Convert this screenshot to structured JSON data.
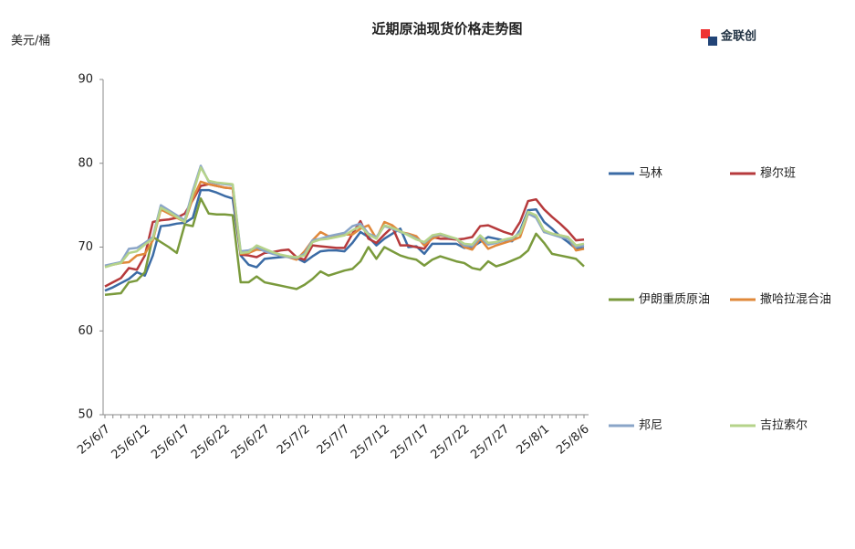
{
  "chart_data": {
    "type": "line",
    "title": "近期原油现货价格走势图",
    "y_label": "美元/桶",
    "logo": "金联创",
    "categories": [
      "25/6/7",
      null,
      null,
      null,
      null,
      "25/6/12",
      null,
      null,
      null,
      null,
      "25/6/17",
      null,
      null,
      null,
      null,
      "25/6/22",
      null,
      null,
      null,
      null,
      "25/6/27",
      null,
      null,
      null,
      null,
      "25/7/2",
      null,
      null,
      null,
      null,
      "25/7/7",
      null,
      null,
      null,
      null,
      "25/7/12",
      null,
      null,
      null,
      null,
      "25/7/17",
      null,
      null,
      null,
      null,
      "25/7/22",
      null,
      null,
      null,
      null,
      "25/7/27",
      null,
      null,
      null,
      null,
      "25/8/1",
      null,
      null,
      null,
      null,
      "25/8/6"
    ],
    "ylim": [
      50,
      90
    ],
    "yticks": [
      50,
      60,
      70,
      80,
      90
    ],
    "series": [
      {
        "name": "马林",
        "color": "#3b6ba5",
        "values": [
          64.8,
          65.2,
          65.7,
          66.2,
          67.0,
          66.6,
          69.0,
          72.5,
          72.6,
          72.8,
          72.9,
          73.5,
          76.8,
          76.8,
          76.5,
          76.1,
          75.8,
          69.0,
          67.9,
          67.6,
          68.6,
          68.7,
          68.8,
          68.9,
          68.7,
          68.2,
          68.9,
          69.5,
          69.6,
          69.6,
          69.5,
          70.5,
          71.8,
          71.2,
          70.2,
          71.0,
          71.6,
          72.2,
          70.0,
          70.1,
          69.2,
          70.4,
          70.4,
          70.4,
          70.4,
          69.9,
          70.0,
          70.6,
          71.2,
          71.0,
          70.8,
          70.7,
          72.0,
          74.4,
          74.5,
          73.0,
          72.2,
          71.3,
          70.6,
          69.8,
          69.9
        ]
      },
      {
        "name": "穆尔班",
        "color": "#b63a3c",
        "values": [
          65.3,
          65.8,
          66.3,
          67.5,
          67.3,
          69.0,
          73.0,
          73.2,
          73.3,
          73.5,
          74.0,
          75.6,
          77.3,
          77.5,
          77.3,
          77.1,
          77.0,
          69.1,
          69.0,
          68.8,
          69.3,
          69.4,
          69.6,
          69.7,
          68.8,
          68.5,
          70.2,
          70.1,
          70.0,
          69.9,
          69.9,
          71.6,
          73.1,
          71.0,
          70.5,
          71.5,
          72.4,
          70.2,
          70.2,
          70.0,
          69.8,
          71.2,
          71.0,
          71.0,
          70.9,
          71.0,
          71.2,
          72.5,
          72.6,
          72.2,
          71.8,
          71.5,
          73.0,
          75.5,
          75.7,
          74.5,
          73.6,
          72.8,
          71.9,
          70.8,
          70.9
        ]
      },
      {
        "name": "伊朗重质原油",
        "color": "#7a9a3c",
        "values": [
          64.3,
          64.4,
          64.5,
          65.8,
          66.0,
          67.0,
          71.2,
          70.6,
          70.0,
          69.3,
          72.7,
          72.5,
          75.8,
          74.0,
          73.9,
          73.9,
          73.8,
          65.8,
          65.8,
          66.5,
          65.8,
          65.6,
          65.4,
          65.2,
          65.0,
          65.5,
          66.2,
          67.1,
          66.6,
          66.9,
          67.2,
          67.4,
          68.3,
          70.0,
          68.6,
          70.0,
          69.5,
          69.0,
          68.7,
          68.5,
          67.8,
          68.5,
          68.9,
          68.6,
          68.3,
          68.1,
          67.5,
          67.3,
          68.3,
          67.7,
          68.0,
          68.4,
          68.8,
          69.6,
          71.6,
          70.5,
          69.2,
          69.0,
          68.8,
          68.6,
          67.7
        ]
      },
      {
        "name": "撒哈拉混合油",
        "color": "#e0883a",
        "values": [
          67.7,
          67.9,
          68.1,
          68.2,
          69.0,
          69.2,
          70.8,
          74.5,
          74.0,
          73.5,
          73.0,
          75.8,
          77.8,
          77.5,
          77.3,
          77.1,
          77.0,
          69.2,
          69.3,
          69.7,
          69.6,
          69.3,
          69.0,
          68.8,
          68.5,
          69.5,
          70.8,
          71.8,
          71.3,
          71.4,
          71.5,
          71.5,
          72.2,
          72.6,
          71.0,
          73.0,
          72.6,
          71.8,
          71.6,
          71.3,
          70.2,
          71.0,
          71.4,
          71.2,
          71.0,
          70.0,
          69.7,
          71.0,
          69.8,
          70.2,
          70.5,
          70.8,
          71.2,
          74.0,
          73.6,
          71.8,
          71.6,
          71.4,
          71.2,
          69.6,
          69.8
        ]
      },
      {
        "name": "邦尼",
        "color": "#8aa5c8",
        "values": [
          67.8,
          68.0,
          68.2,
          69.8,
          69.9,
          70.5,
          71.2,
          75.0,
          74.4,
          73.8,
          73.2,
          76.7,
          79.7,
          77.8,
          77.6,
          77.5,
          77.4,
          69.5,
          69.6,
          70.0,
          69.5,
          69.2,
          69.0,
          68.8,
          68.7,
          69.2,
          70.8,
          71.0,
          71.3,
          71.5,
          71.7,
          72.5,
          72.8,
          71.6,
          71.2,
          72.5,
          72.2,
          71.8,
          71.5,
          71.0,
          70.5,
          71.3,
          71.5,
          71.2,
          71.0,
          70.2,
          70.1,
          71.2,
          70.3,
          70.5,
          70.8,
          71.0,
          71.8,
          74.0,
          73.5,
          71.8,
          71.5,
          71.2,
          71.0,
          70.0,
          70.2
        ]
      },
      {
        "name": "吉拉索尔",
        "color": "#b5d38a",
        "values": [
          67.6,
          67.9,
          68.1,
          69.3,
          69.5,
          70.3,
          71.0,
          74.7,
          74.2,
          73.6,
          73.0,
          76.3,
          79.5,
          77.9,
          77.7,
          77.6,
          77.5,
          69.3,
          69.4,
          70.2,
          69.8,
          69.4,
          69.1,
          68.9,
          68.8,
          69.0,
          70.6,
          70.9,
          71.0,
          71.2,
          71.4,
          72.0,
          72.5,
          71.5,
          71.0,
          72.6,
          72.3,
          71.9,
          71.4,
          70.9,
          70.6,
          71.4,
          71.6,
          71.3,
          71.0,
          70.4,
          70.3,
          71.4,
          70.5,
          70.6,
          70.9,
          71.1,
          71.6,
          74.2,
          73.8,
          72.0,
          71.6,
          71.4,
          71.2,
          70.2,
          70.4
        ]
      }
    ]
  }
}
